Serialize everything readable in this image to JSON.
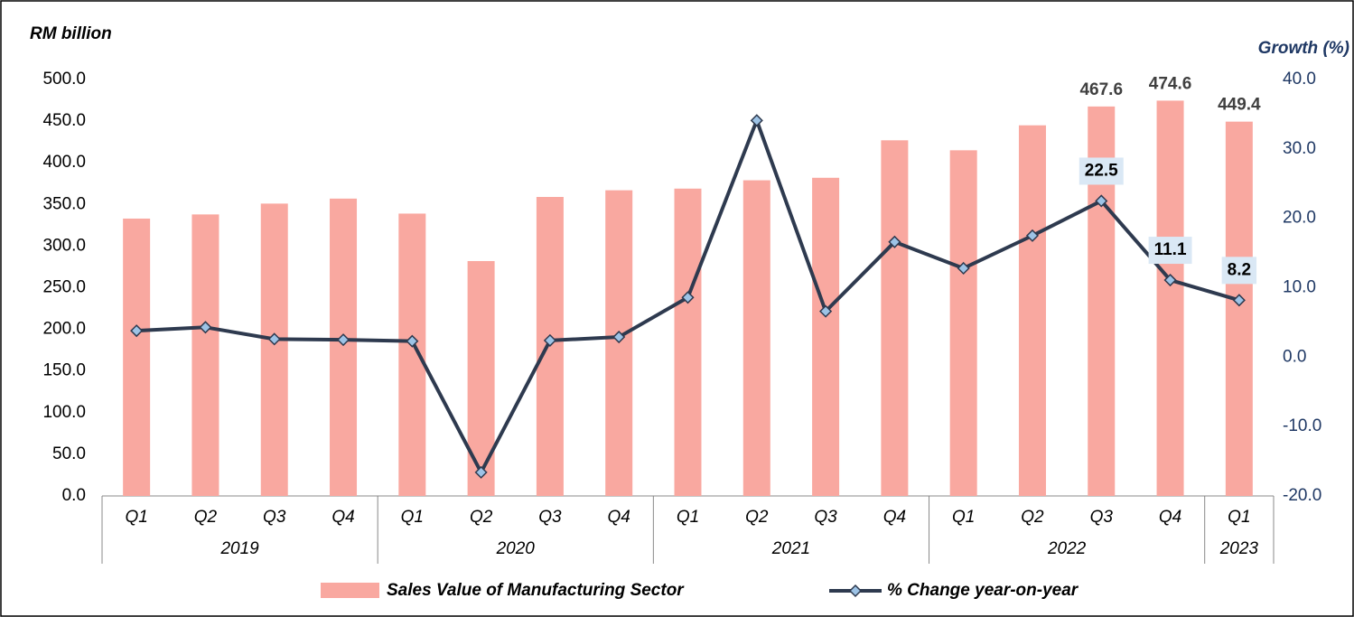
{
  "chart_data": {
    "type": "bar_line",
    "y_axis_label": "RM billion",
    "y2_axis_label": "Growth (%)",
    "categories": [
      "Q1",
      "Q2",
      "Q3",
      "Q4",
      "Q1",
      "Q2",
      "Q3",
      "Q4",
      "Q1",
      "Q2",
      "Q3",
      "Q4",
      "Q1",
      "Q2",
      "Q3",
      "Q4",
      "Q1"
    ],
    "groups": [
      {
        "name": "2019",
        "span": 4
      },
      {
        "name": "2020",
        "span": 4
      },
      {
        "name": "2021",
        "span": 4
      },
      {
        "name": "2022",
        "span": 4
      },
      {
        "name": "2023",
        "span": 1
      }
    ],
    "series": [
      {
        "name": "Sales Value of Manufacturing Sector",
        "type": "bar",
        "axis": "y",
        "color": "#f9a8a0",
        "values": [
          333,
          338,
          351,
          357,
          339,
          282,
          359,
          367,
          369,
          379,
          382,
          427,
          415,
          445,
          467.6,
          474.6,
          449.4
        ],
        "value_labels": [
          null,
          null,
          null,
          null,
          null,
          null,
          null,
          null,
          null,
          null,
          null,
          null,
          null,
          null,
          "467.6",
          "474.6",
          "449.4"
        ]
      },
      {
        "name": "% Change year-on-year",
        "type": "line",
        "axis": "y2",
        "color": "#2e3a4f",
        "marker_color": "#9dc3e6",
        "values": [
          3.8,
          4.3,
          2.6,
          2.5,
          2.3,
          -16.6,
          2.4,
          2.9,
          8.6,
          34.1,
          6.6,
          16.6,
          12.8,
          17.5,
          22.5,
          11.1,
          8.2
        ],
        "value_labels": [
          null,
          null,
          null,
          null,
          null,
          null,
          null,
          null,
          null,
          null,
          null,
          null,
          null,
          null,
          "22.5",
          "11.1",
          "8.2"
        ]
      }
    ],
    "ylim": [
      0,
      500
    ],
    "yticks": [
      {
        "value": 0,
        "label": "0.0"
      },
      {
        "value": 50,
        "label": "50.0"
      },
      {
        "value": 100,
        "label": "100.0"
      },
      {
        "value": 150,
        "label": "150.0"
      },
      {
        "value": 200,
        "label": "200.0"
      },
      {
        "value": 250,
        "label": "250.0"
      },
      {
        "value": 300,
        "label": "300.0"
      },
      {
        "value": 350,
        "label": "350.0"
      },
      {
        "value": 400,
        "label": "400.0"
      },
      {
        "value": 450,
        "label": "450.0"
      },
      {
        "value": 500,
        "label": "500.0"
      }
    ],
    "y2lim": [
      -20,
      40
    ],
    "y2ticks": [
      {
        "value": -20,
        "label": "-20.0"
      },
      {
        "value": -10,
        "label": "-10.0"
      },
      {
        "value": 0,
        "label": "0.0"
      },
      {
        "value": 10,
        "label": "10.0"
      },
      {
        "value": 20,
        "label": "20.0"
      },
      {
        "value": 30,
        "label": "30.0"
      },
      {
        "value": 40,
        "label": "40.0"
      }
    ],
    "grid": false,
    "legend": "bottom"
  }
}
